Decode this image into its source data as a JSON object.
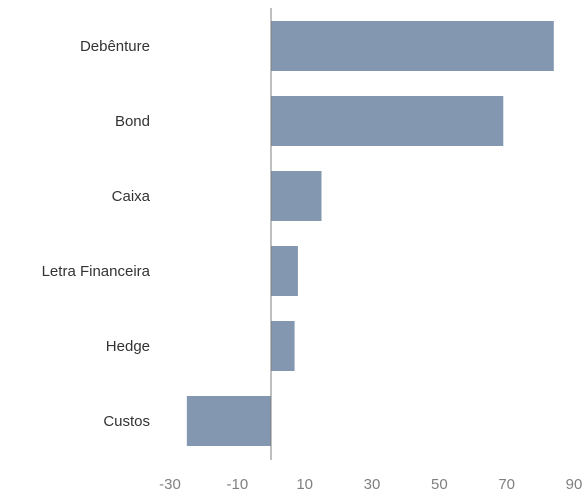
{
  "chart_data": {
    "type": "bar",
    "orientation": "horizontal",
    "categories": [
      "Debênture",
      "Bond",
      "Caixa",
      "Letra Financeira",
      "Hedge",
      "Custos"
    ],
    "values": [
      84,
      69,
      15,
      8,
      7,
      -25
    ],
    "xlim": [
      -30,
      90
    ],
    "xticks": [
      "-30",
      "-10",
      "10",
      "30",
      "50",
      "70",
      "90"
    ],
    "bar_color": "#8397B0",
    "axis_color": "#7F7F7F",
    "grid": false,
    "legend": "none",
    "title": "",
    "xlabel": "",
    "ylabel": ""
  }
}
